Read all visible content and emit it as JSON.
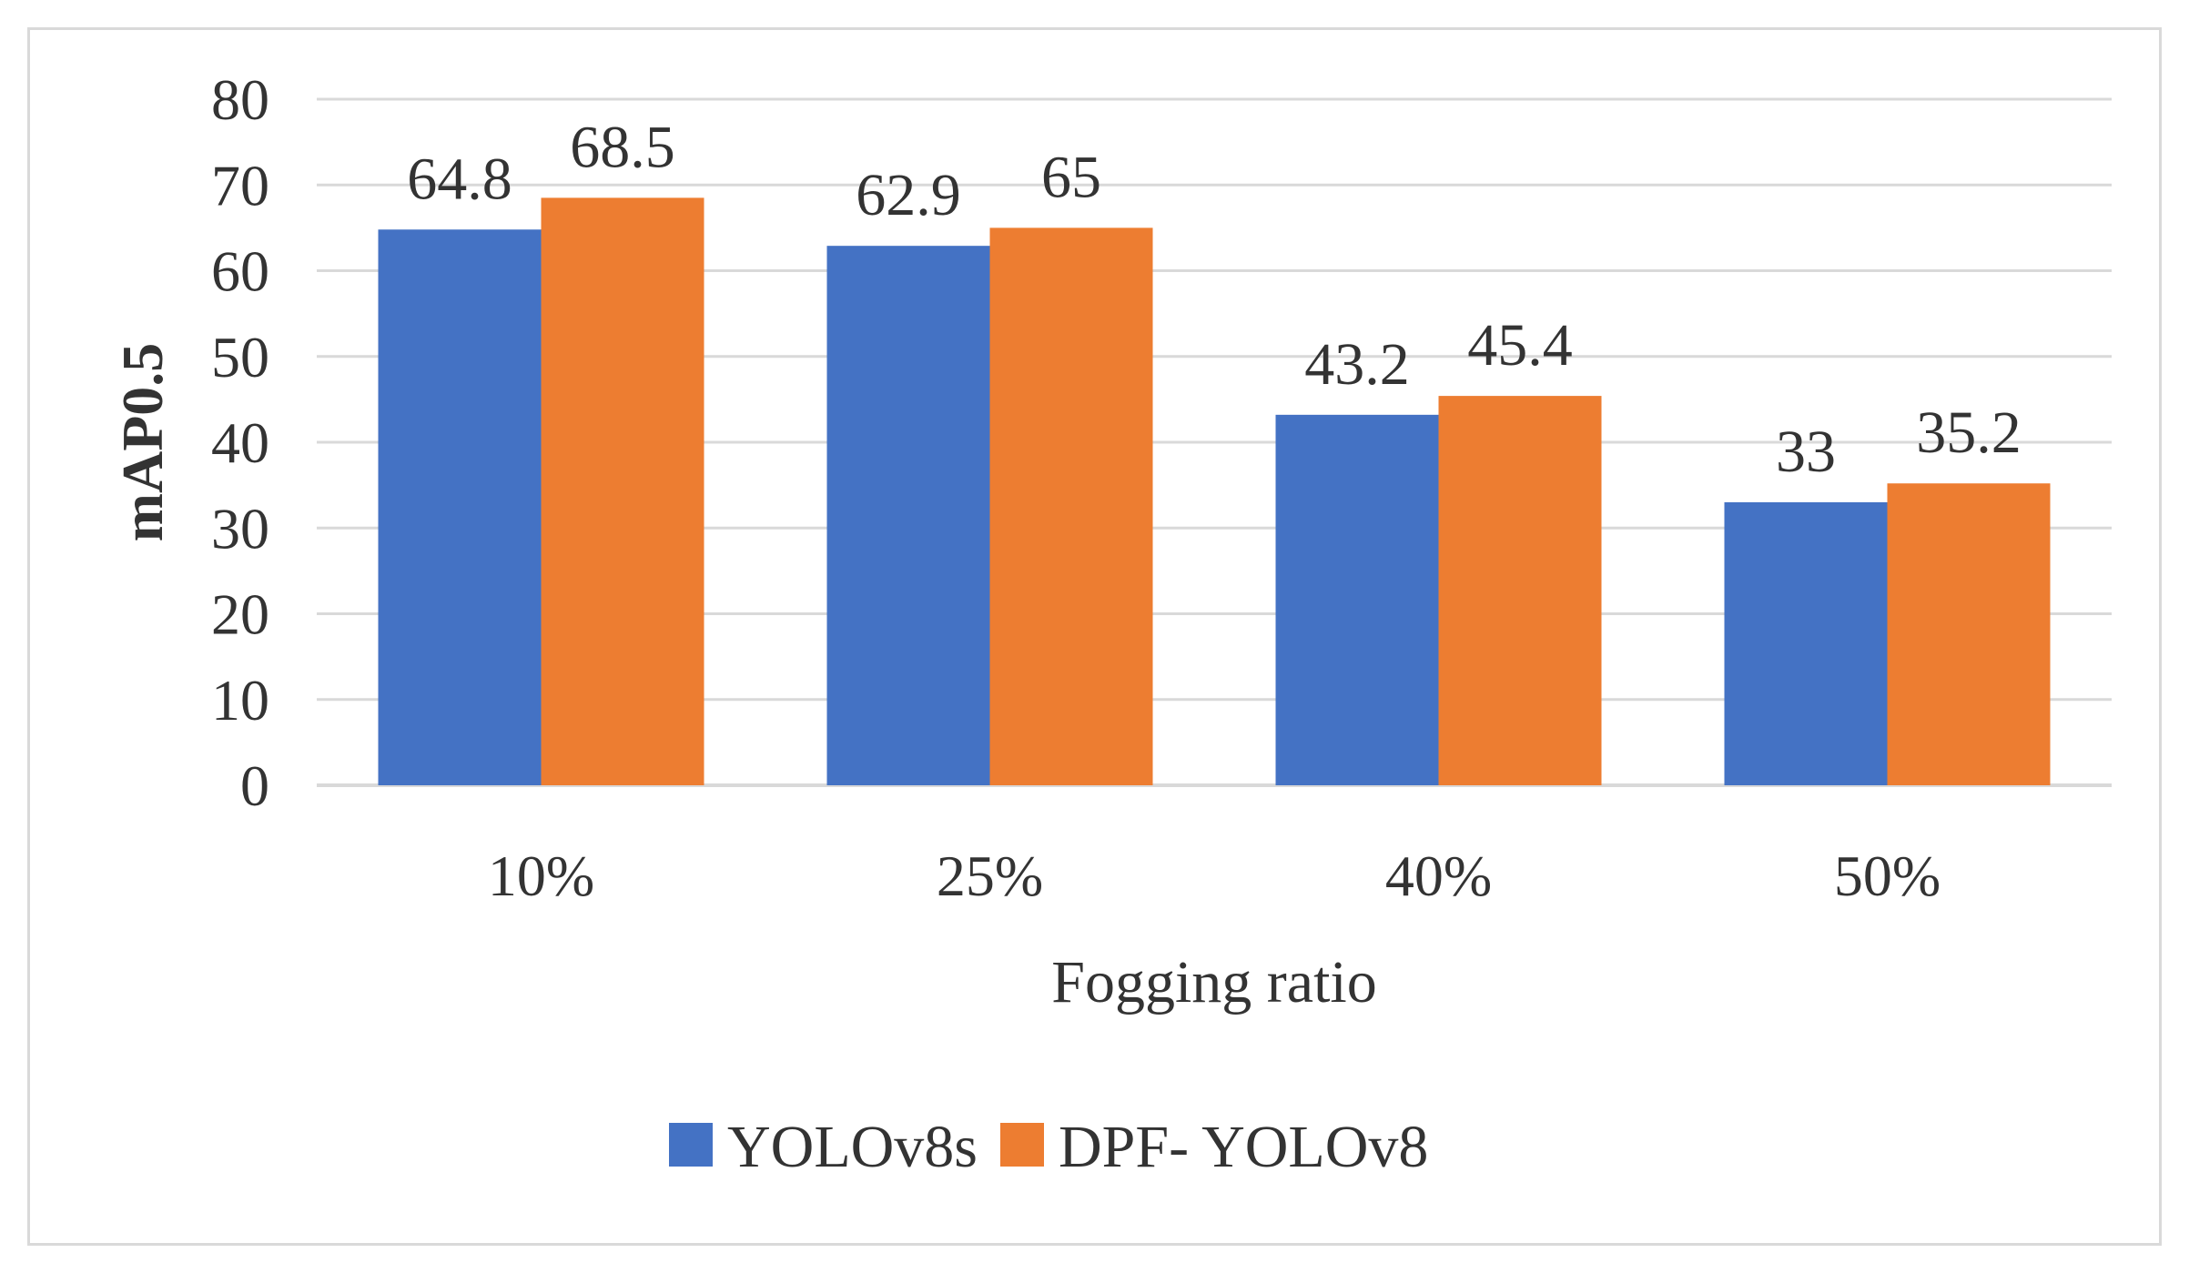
{
  "chart_data": {
    "type": "bar",
    "categories": [
      "10%",
      "25%",
      "40%",
      "50%"
    ],
    "series": [
      {
        "name": "YOLOv8s",
        "values": [
          64.8,
          62.9,
          43.2,
          33
        ],
        "labels": [
          "64.8",
          "62.9",
          "43.2",
          "33"
        ],
        "color": "#4472c4"
      },
      {
        "name": "DPF- YOLOv8",
        "values": [
          68.5,
          65,
          45.4,
          35.2
        ],
        "labels": [
          "68.5",
          "65",
          "45.4",
          "35.2"
        ],
        "color": "#ed7d31"
      }
    ],
    "title": "",
    "xlabel": "Fogging ratio",
    "ylabel": "mAP0.5",
    "ylim": [
      0,
      80
    ],
    "yticks": [
      "0",
      "10",
      "20",
      "30",
      "40",
      "50",
      "60",
      "70",
      "80"
    ],
    "grid": true,
    "legend_position": "bottom",
    "gridline_color": "#d9d9d9",
    "border_color": "#d9d9d9"
  }
}
